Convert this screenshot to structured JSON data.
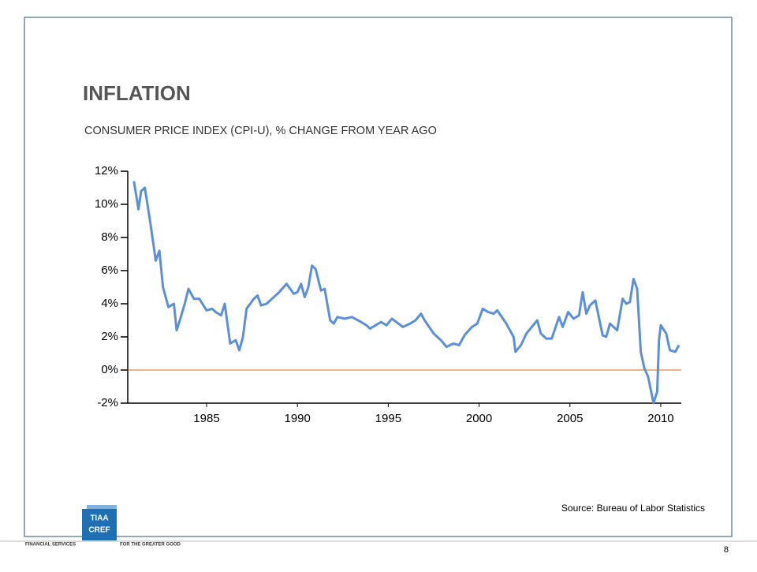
{
  "slide": {
    "source": "Source: Bureau  of Labor Statistics",
    "page_number": "8",
    "logo": {
      "top": "TIAA",
      "bottom": "CREF",
      "left_text": "FINANCIAL SERVICES",
      "right_text": "FOR THE GREATER GOOD"
    }
  },
  "chart_data": {
    "type": "line",
    "title": "INFLATION",
    "subtitle": "CONSUMER PRICE INDEX (CPI-U), % CHANGE FROM YEAR AGO",
    "x": [
      1981.0,
      1981.25,
      1981.4,
      1981.6,
      1981.9,
      1982.2,
      1982.4,
      1982.6,
      1982.9,
      1983.2,
      1983.35,
      1983.5,
      1983.8,
      1984.0,
      1984.3,
      1984.6,
      1985.0,
      1985.3,
      1985.5,
      1985.8,
      1986.0,
      1986.3,
      1986.6,
      1986.8,
      1987.0,
      1987.2,
      1987.6,
      1987.8,
      1988.0,
      1988.3,
      1988.6,
      1989.0,
      1989.4,
      1989.8,
      1990.0,
      1990.2,
      1990.4,
      1990.6,
      1990.8,
      1991.0,
      1991.3,
      1991.5,
      1991.8,
      1992.0,
      1992.2,
      1992.6,
      1993.0,
      1993.5,
      1993.8,
      1994.0,
      1994.6,
      1994.9,
      1995.2,
      1995.8,
      1996.2,
      1996.5,
      1996.8,
      1997.0,
      1997.5,
      1997.9,
      1998.2,
      1998.6,
      1998.9,
      1999.2,
      1999.6,
      1999.9,
      2000.2,
      2000.5,
      2000.8,
      2001.0,
      2001.5,
      2001.9,
      2002.0,
      2002.3,
      2002.6,
      2002.9,
      2003.2,
      2003.4,
      2003.7,
      2004.0,
      2004.4,
      2004.6,
      2004.9,
      2005.2,
      2005.5,
      2005.7,
      2005.9,
      2006.1,
      2006.4,
      2006.8,
      2007.0,
      2007.2,
      2007.6,
      2007.9,
      2008.1,
      2008.3,
      2008.5,
      2008.7,
      2008.9,
      2009.1,
      2009.3,
      2009.6,
      2009.8,
      2009.9,
      2010.0,
      2010.3,
      2010.5,
      2010.8,
      2011.0
    ],
    "series": [
      {
        "name": "CPI-U",
        "color": "#5b8fd9",
        "values": [
          11.4,
          9.7,
          10.8,
          11.0,
          8.9,
          6.6,
          7.2,
          5.0,
          3.8,
          4.0,
          2.4,
          2.9,
          4.0,
          4.9,
          4.3,
          4.3,
          3.6,
          3.7,
          3.5,
          3.3,
          4.0,
          1.6,
          1.8,
          1.2,
          2.0,
          3.7,
          4.3,
          4.5,
          3.9,
          4.0,
          4.3,
          4.7,
          5.2,
          4.6,
          4.7,
          5.2,
          4.4,
          5.0,
          6.3,
          6.1,
          4.8,
          4.9,
          3.0,
          2.8,
          3.2,
          3.1,
          3.2,
          2.9,
          2.7,
          2.5,
          2.9,
          2.7,
          3.1,
          2.6,
          2.8,
          3.0,
          3.4,
          3.0,
          2.2,
          1.8,
          1.4,
          1.6,
          1.5,
          2.1,
          2.6,
          2.8,
          3.7,
          3.5,
          3.4,
          3.6,
          2.8,
          2.0,
          1.1,
          1.5,
          2.2,
          2.6,
          3.0,
          2.2,
          1.9,
          1.9,
          3.2,
          2.6,
          3.5,
          3.1,
          3.3,
          4.7,
          3.4,
          3.9,
          4.2,
          2.1,
          2.0,
          2.8,
          2.4,
          4.3,
          4.0,
          4.1,
          5.5,
          4.9,
          1.1,
          0.1,
          -0.4,
          -2.0,
          -1.3,
          1.8,
          2.7,
          2.2,
          1.2,
          1.1,
          1.5
        ]
      }
    ],
    "xlim": [
      1980.66,
      2011.13
    ],
    "xticks": [
      1985,
      1990,
      1995,
      2000,
      2005,
      2010
    ],
    "ylim": [
      -2,
      12
    ],
    "yticks": [
      {
        "value": -2,
        "label": "-2%"
      },
      {
        "value": 0,
        "label": "0%"
      },
      {
        "value": 2,
        "label": "2%"
      },
      {
        "value": 4,
        "label": "4%"
      },
      {
        "value": 6,
        "label": "6%"
      },
      {
        "value": 8,
        "label": "8%"
      },
      {
        "value": 10,
        "label": "10%"
      },
      {
        "value": 12,
        "label": "12%"
      }
    ],
    "baseline": 0,
    "baseline_color": "#d2691e"
  }
}
